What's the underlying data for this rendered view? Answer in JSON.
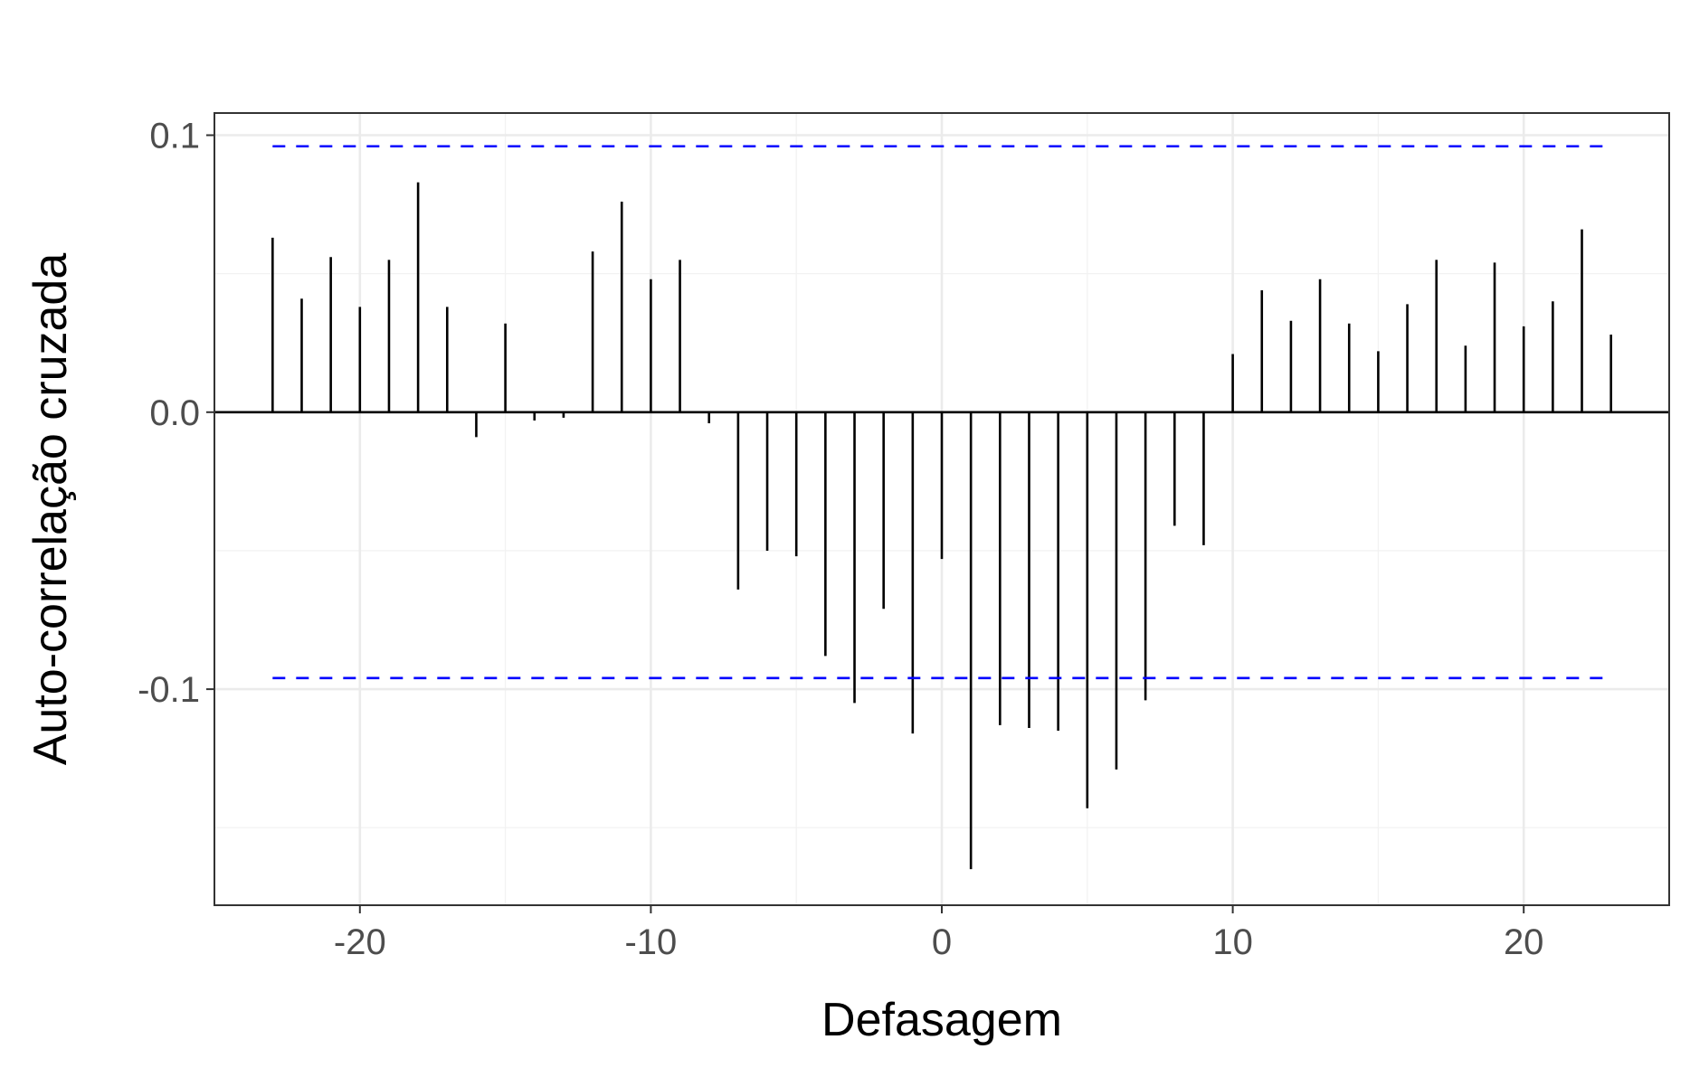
{
  "chart_data": {
    "type": "bar",
    "subtype": "cross-correlation stem plot",
    "title": "",
    "xlabel": "Defasagem",
    "ylabel": "Auto-correlação cruzada",
    "xlim": [
      -25,
      25
    ],
    "ylim": [
      -0.178,
      0.108
    ],
    "x_ticks": [
      -20,
      -10,
      0,
      10,
      20
    ],
    "x_tick_labels": [
      "-20",
      "-10",
      "0",
      "10",
      "20"
    ],
    "y_ticks": [
      -0.1,
      0.0,
      0.1
    ],
    "y_tick_labels": [
      "-0.1",
      "0.0",
      "0.1"
    ],
    "grid": true,
    "confidence_bound": 0.096,
    "confidence_range": [
      -23,
      23
    ],
    "lags": [
      -23,
      -22,
      -21,
      -20,
      -19,
      -18,
      -17,
      -16,
      -15,
      -14,
      -13,
      -12,
      -11,
      -10,
      -9,
      -8,
      -7,
      -6,
      -5,
      -4,
      -3,
      -2,
      -1,
      0,
      1,
      2,
      3,
      4,
      5,
      6,
      7,
      8,
      9,
      10,
      11,
      12,
      13,
      14,
      15,
      16,
      17,
      18,
      19,
      20,
      21,
      22,
      23
    ],
    "values": [
      0.063,
      0.041,
      0.056,
      0.038,
      0.055,
      0.083,
      0.038,
      -0.009,
      0.032,
      -0.003,
      -0.002,
      0.058,
      0.076,
      0.048,
      0.055,
      -0.004,
      -0.064,
      -0.05,
      -0.052,
      -0.088,
      -0.105,
      -0.071,
      -0.116,
      -0.053,
      -0.165,
      -0.113,
      -0.114,
      -0.115,
      -0.143,
      -0.129,
      -0.104,
      -0.041,
      -0.048,
      0.021,
      0.044,
      0.033,
      0.048,
      0.032,
      0.022,
      0.039,
      0.055,
      0.024,
      0.054,
      0.031,
      0.04,
      0.066,
      0.028
    ],
    "colors": {
      "bars": "#000000",
      "confidence": "#0000ff",
      "grid_major": "#ebebeb",
      "grid_minor": "#f2f2f2",
      "panel_border": "#333333",
      "tick_text": "#4d4d4d"
    }
  }
}
